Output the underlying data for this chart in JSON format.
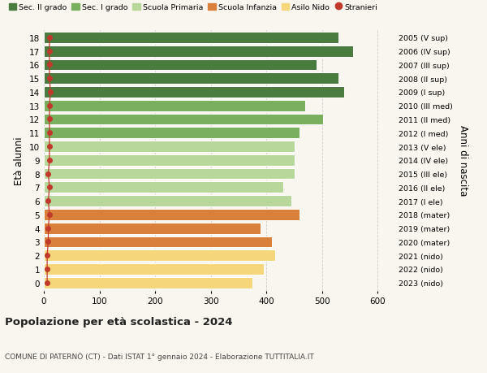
{
  "ages": [
    18,
    17,
    16,
    15,
    14,
    13,
    12,
    11,
    10,
    9,
    8,
    7,
    6,
    5,
    4,
    3,
    2,
    1,
    0
  ],
  "right_labels": [
    "2005 (V sup)",
    "2006 (IV sup)",
    "2007 (III sup)",
    "2008 (II sup)",
    "2009 (I sup)",
    "2010 (III med)",
    "2011 (II med)",
    "2012 (I med)",
    "2013 (V ele)",
    "2014 (IV ele)",
    "2015 (III ele)",
    "2016 (II ele)",
    "2017 (I ele)",
    "2018 (mater)",
    "2019 (mater)",
    "2020 (mater)",
    "2021 (nido)",
    "2022 (nido)",
    "2023 (nido)"
  ],
  "bar_values": [
    530,
    555,
    490,
    530,
    540,
    470,
    502,
    460,
    450,
    450,
    450,
    430,
    445,
    460,
    390,
    410,
    415,
    395,
    375
  ],
  "bar_colors": [
    "#4a7c3f",
    "#4a7c3f",
    "#4a7c3f",
    "#4a7c3f",
    "#4a7c3f",
    "#7aaf5e",
    "#7aaf5e",
    "#7aaf5e",
    "#b8d89b",
    "#b8d89b",
    "#b8d89b",
    "#b8d89b",
    "#b8d89b",
    "#d9813a",
    "#d9813a",
    "#d9813a",
    "#f5d67a",
    "#f5d67a",
    "#f5d67a"
  ],
  "stranieri_values": [
    10,
    10,
    10,
    10,
    12,
    10,
    10,
    10,
    10,
    10,
    8,
    10,
    8,
    10,
    8,
    8,
    6,
    6,
    6
  ],
  "stranieri_color": "#c0392b",
  "legend_entries": [
    {
      "label": "Sec. II grado",
      "color": "#4a7c3f"
    },
    {
      "label": "Sec. I grado",
      "color": "#7aaf5e"
    },
    {
      "label": "Scuola Primaria",
      "color": "#b8d89b"
    },
    {
      "label": "Scuola Infanzia",
      "color": "#d9813a"
    },
    {
      "label": "Asilo Nido",
      "color": "#f5d67a"
    },
    {
      "label": "Stranieri",
      "color": "#c0392b"
    }
  ],
  "ylabel": "Età alunni",
  "right_ylabel": "Anni di nascita",
  "title": "Popolazione per età scolastica - 2024",
  "subtitle": "COMUNE DI PATERNÒ (CT) - Dati ISTAT 1° gennaio 2024 - Elaborazione TUTTITALIA.IT",
  "xlim": [
    0,
    630
  ],
  "xticks": [
    0,
    100,
    200,
    300,
    400,
    500,
    600
  ],
  "bg_color": "#f9f5ef",
  "grid_color": "#cccccc"
}
